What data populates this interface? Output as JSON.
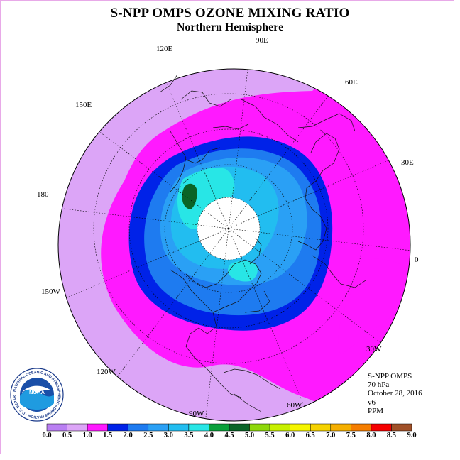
{
  "title": "S-NPP OMPS OZONE MIXING RATIO",
  "subtitle": "Northern Hemisphere",
  "longitude_labels": [
    "90E",
    "60E",
    "30E",
    "0",
    "30W",
    "60W",
    "90W",
    "120W",
    "150W",
    "180",
    "150E",
    "120E"
  ],
  "info": {
    "instrument": "S-NPP OMPS",
    "pressure_level": "70 hPa",
    "date": "October 28, 2016",
    "version": "v6",
    "units": "PPM"
  },
  "logo": {
    "name": "NOAA",
    "ring_text": "NATIONAL OCEANIC AND ATMOSPHERIC ADMINISTRATION · U.S. DEPARTMENT OF COMMERCE"
  },
  "colorbar": {
    "ticks": [
      "0.0",
      "0.5",
      "1.0",
      "1.5",
      "2.0",
      "2.5",
      "3.0",
      "3.5",
      "4.0",
      "4.5",
      "5.0",
      "5.5",
      "6.0",
      "6.5",
      "7.0",
      "7.5",
      "8.0",
      "8.5",
      "9.0"
    ],
    "colors": [
      "#b97ff2",
      "#dca5f7",
      "#ff19ff",
      "#0022e8",
      "#1e7bf0",
      "#2aa0f5",
      "#22bdf0",
      "#28e6e6",
      "#0aa03a",
      "#0a6428",
      "#8ed80a",
      "#c8f000",
      "#f5f500",
      "#f5d200",
      "#f5af00",
      "#f57d00",
      "#f50000",
      "#a05028"
    ]
  },
  "map_colors": {
    "level_0_5": "#dca5f7",
    "level_1_0": "#ff19ff",
    "level_1_5": "#0022e8",
    "level_2_0": "#1e7bf0",
    "level_2_5": "#2aa0f5",
    "level_3_0": "#22bdf0",
    "level_3_5": "#28e6e6",
    "level_4_5": "#0a6428",
    "no_data": "#ffffff"
  }
}
